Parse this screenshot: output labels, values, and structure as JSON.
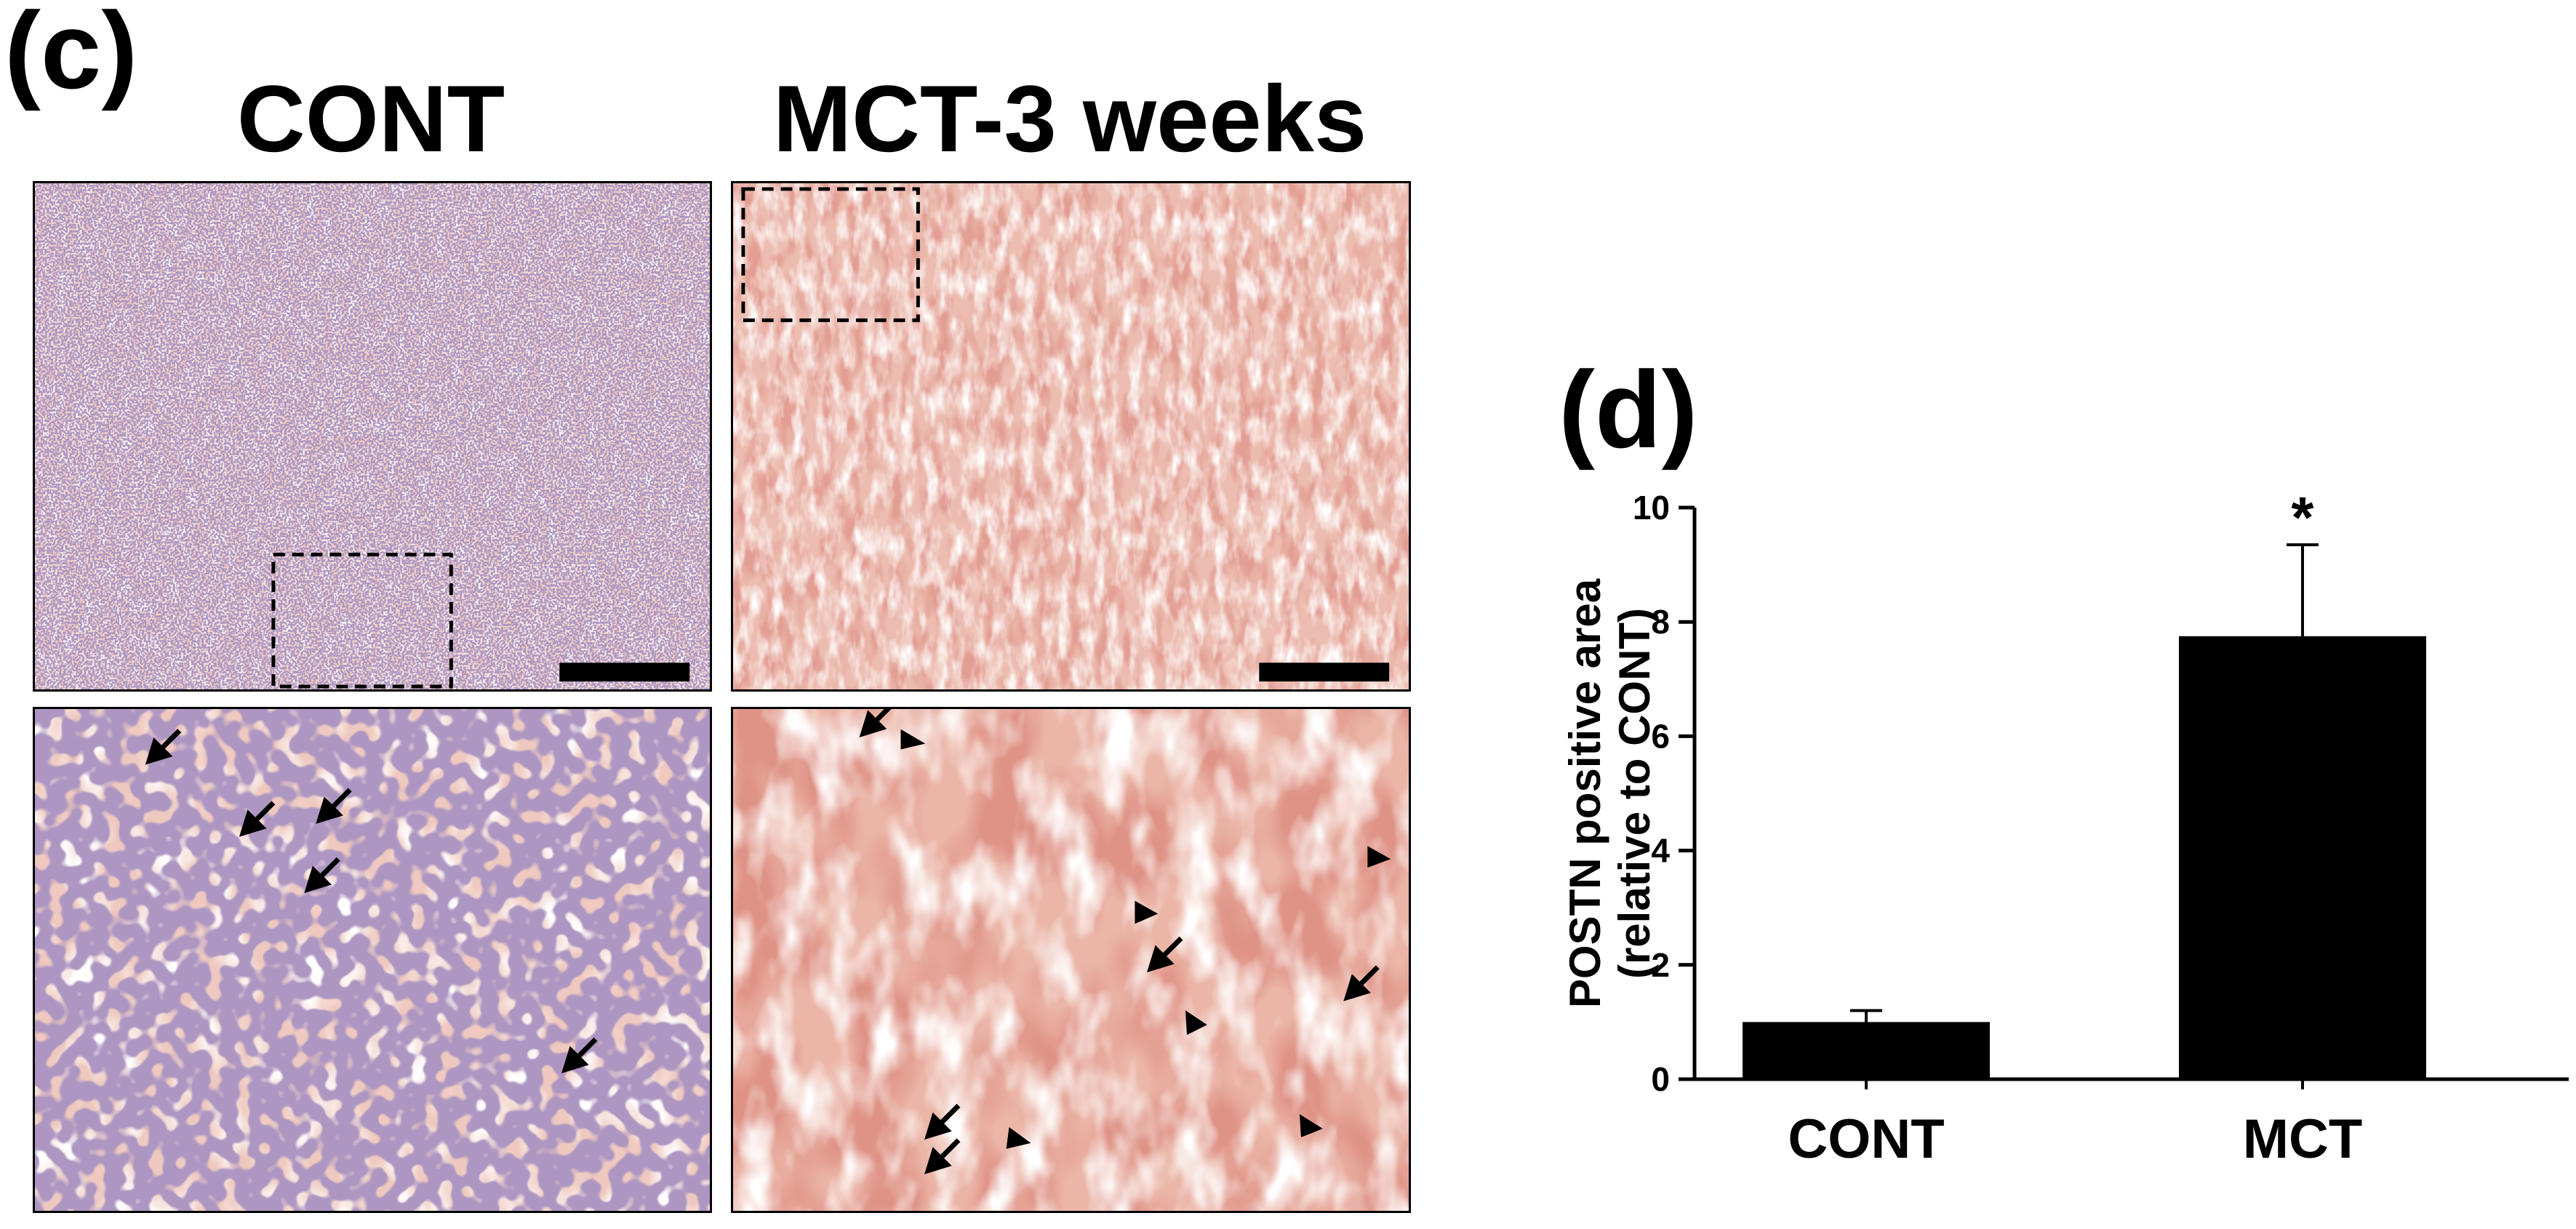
{
  "figure": {
    "panel_c_label": "(c)",
    "panel_d_label": "(d)",
    "column_titles": {
      "cont": "CONT",
      "mct": "MCT-3 weeks"
    },
    "colors": {
      "tissue_cont": "#efcbc4",
      "tissue_mct": "#ecb9ad",
      "stain_brown": "#c4564a",
      "nuclei": "#6b4f8a",
      "bar": "#000000"
    }
  },
  "chart_data": {
    "type": "bar",
    "categories": [
      "CONT",
      "MCT"
    ],
    "values": [
      1.0,
      7.75
    ],
    "errors": [
      0.2,
      1.6
    ],
    "significance": [
      "",
      "*"
    ],
    "ylabel_lines": [
      "POSTN positive area",
      "(relative to CONT)"
    ],
    "ylim": [
      0,
      10
    ],
    "yticks": [
      0,
      2,
      4,
      6,
      8,
      10
    ],
    "grid": false
  }
}
